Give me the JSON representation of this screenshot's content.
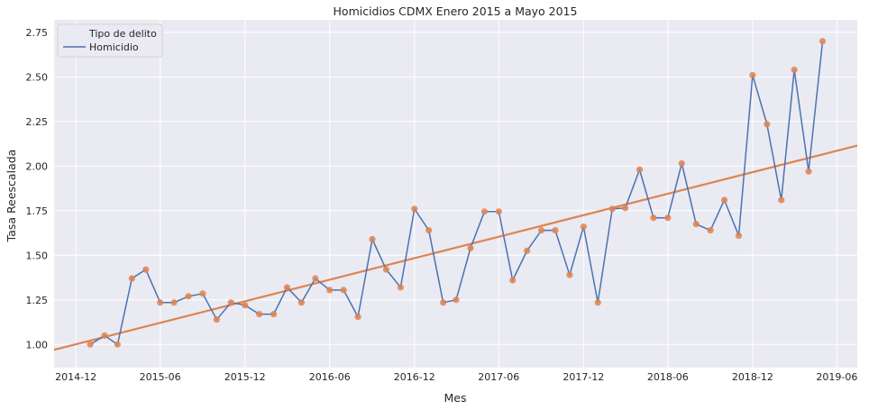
{
  "chart_data": {
    "type": "line",
    "title": "Homicidios CDMX Enero 2015 a Mayo 2015",
    "xlabel": "Mes",
    "ylabel": "Tasa Reescalada",
    "x_ticks": [
      "2014-12",
      "2015-06",
      "2015-12",
      "2016-06",
      "2016-12",
      "2017-06",
      "2017-12",
      "2018-06",
      "2018-12",
      "2019-06"
    ],
    "y_ticks": [
      "1.00",
      "1.25",
      "1.50",
      "1.75",
      "2.00",
      "2.25",
      "2.50",
      "2.75"
    ],
    "xlim": [
      "2014-10-15",
      "2019-07-15"
    ],
    "ylim": [
      0.87,
      2.82
    ],
    "grid": true,
    "legend": {
      "title": "Tipo de delito",
      "position": "top-left"
    },
    "series": [
      {
        "name": "Homicidio",
        "color": "#4c72b0",
        "marker_color": "#dd8452",
        "x": [
          "2015-01",
          "2015-02",
          "2015-03",
          "2015-04",
          "2015-05",
          "2015-06",
          "2015-07",
          "2015-08",
          "2015-09",
          "2015-10",
          "2015-11",
          "2015-12",
          "2016-01",
          "2016-02",
          "2016-03",
          "2016-04",
          "2016-05",
          "2016-06",
          "2016-07",
          "2016-08",
          "2016-09",
          "2016-10",
          "2016-11",
          "2016-12",
          "2017-01",
          "2017-02",
          "2017-03",
          "2017-04",
          "2017-05",
          "2017-06",
          "2017-07",
          "2017-08",
          "2017-09",
          "2017-10",
          "2017-11",
          "2017-12",
          "2018-01",
          "2018-02",
          "2018-03",
          "2018-04",
          "2018-05",
          "2018-06",
          "2018-07",
          "2018-08",
          "2018-09",
          "2018-10",
          "2018-11",
          "2018-12",
          "2019-01",
          "2019-02",
          "2019-03",
          "2019-04",
          "2019-05"
        ],
        "values": [
          1.0,
          1.05,
          1.0,
          1.37,
          1.42,
          1.235,
          1.235,
          1.27,
          1.285,
          1.14,
          1.235,
          1.22,
          1.17,
          1.17,
          1.32,
          1.235,
          1.37,
          1.305,
          1.305,
          1.155,
          1.59,
          1.42,
          1.32,
          1.76,
          1.64,
          1.235,
          1.25,
          1.54,
          1.745,
          1.745,
          1.36,
          1.525,
          1.64,
          1.64,
          1.39,
          1.66,
          1.235,
          1.76,
          1.765,
          1.98,
          1.71,
          1.71,
          2.015,
          1.675,
          1.64,
          1.81,
          1.61,
          2.51,
          2.235,
          1.81,
          2.54,
          1.97,
          2.7
        ]
      }
    ],
    "trend": {
      "color": "#dd8452",
      "start": [
        "2014-10-15",
        0.97
      ],
      "end": [
        "2019-07-15",
        2.115
      ]
    }
  }
}
